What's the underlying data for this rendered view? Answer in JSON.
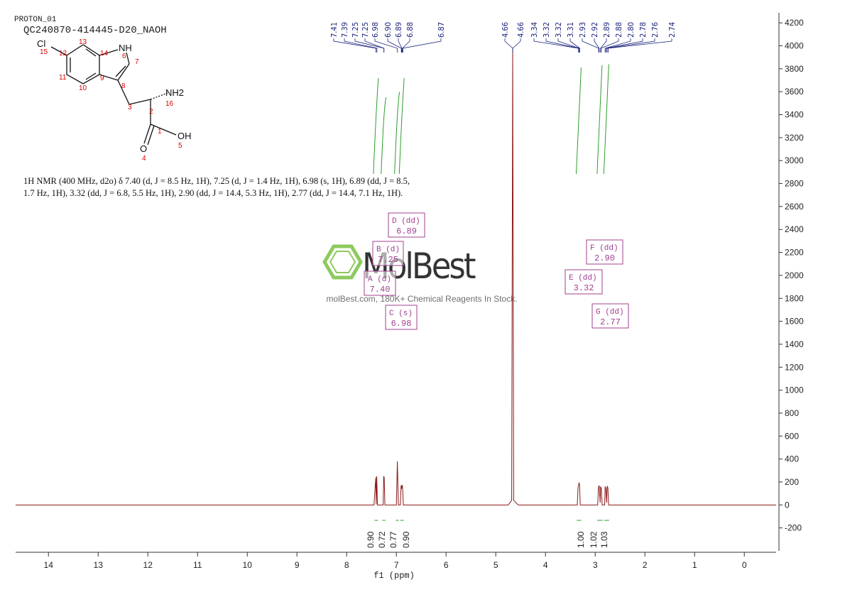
{
  "header": {
    "experiment": "PROTON_01",
    "sample": "QC240870-414445-D20_NAOH"
  },
  "structure": {
    "atoms": [
      "Cl",
      "NH",
      "NH2",
      "OH",
      "O"
    ],
    "numbers": [
      "15",
      "12",
      "13",
      "14",
      "6",
      "7",
      "11",
      "9",
      "8",
      "10",
      "3",
      "2",
      "16",
      "1",
      "5",
      "4"
    ]
  },
  "description": "1H NMR (400 MHz, d2o) δ 7.40 (d, J = 8.5 Hz, 1H), 7.25 (d, J = 1.4 Hz, 1H), 6.98 (s, 1H), 6.89 (dd, J = 8.5, 1.7 Hz, 1H), 3.32 (dd, J = 6.8, 5.5 Hz, 1H), 2.90 (dd, J = 14.4, 5.3 Hz, 1H), 2.77 (dd, J = 14.4, 7.1 Hz, 1H).",
  "watermark": {
    "brand": "MolBest",
    "tagline": "molBest.com, 180K+ Chemical Reagents In Stock."
  },
  "chart_data": {
    "type": "line",
    "xlabel": "f1 (ppm)",
    "color": "#8b1a1a",
    "xlim": [
      14.66,
      -0.64
    ],
    "xticks": [
      14,
      13,
      12,
      11,
      10,
      9,
      8,
      7,
      6,
      5,
      4,
      3,
      2,
      1,
      0
    ],
    "ylim": [
      -400,
      4300
    ],
    "yticks": [
      -200,
      0,
      200,
      400,
      600,
      800,
      1000,
      1200,
      1400,
      1600,
      1800,
      2000,
      2200,
      2400,
      2600,
      2800,
      3000,
      3200,
      3400,
      3600,
      3800,
      4000,
      4200
    ],
    "x": [
      14.66,
      7.45,
      7.415,
      7.405,
      7.395,
      7.38,
      7.265,
      7.255,
      7.245,
      7.23,
      7.0,
      6.98,
      6.96,
      6.92,
      6.905,
      6.895,
      6.885,
      6.875,
      6.86,
      4.75,
      4.68,
      4.66,
      4.64,
      4.55,
      3.36,
      3.345,
      3.325,
      3.315,
      3.3,
      2.95,
      2.935,
      2.92,
      2.9,
      2.89,
      2.875,
      2.86,
      2.81,
      2.8,
      2.785,
      2.77,
      2.76,
      2.745,
      2.73,
      -0.64
    ],
    "values": [
      0,
      0,
      240,
      5,
      250,
      0,
      0,
      250,
      240,
      0,
      0,
      380,
      0,
      0,
      170,
      140,
      175,
      150,
      0,
      0,
      40,
      3980,
      40,
      0,
      0,
      150,
      190,
      180,
      0,
      0,
      150,
      170,
      20,
      160,
      140,
      0,
      0,
      160,
      140,
      20,
      165,
      150,
      0,
      0
    ],
    "peak_picks": [
      {
        "value": 7.41,
        "label": "7.41"
      },
      {
        "value": 7.39,
        "label": "7.39"
      },
      {
        "value": 7.25,
        "label": "7.25"
      },
      {
        "value": 7.25,
        "label": "7.25"
      },
      {
        "value": 6.98,
        "label": "6.98"
      },
      {
        "value": 6.9,
        "label": "6.90"
      },
      {
        "value": 6.89,
        "label": "6.89"
      },
      {
        "value": 6.88,
        "label": "6.88"
      },
      {
        "value": 6.87,
        "label": "6.87"
      },
      {
        "value": 4.66,
        "label": "4.66"
      },
      {
        "value": 4.66,
        "label": "4.66"
      },
      {
        "value": 3.34,
        "label": "3.34"
      },
      {
        "value": 3.32,
        "label": "3.32"
      },
      {
        "value": 3.32,
        "label": "3.32"
      },
      {
        "value": 3.31,
        "label": "3.31"
      },
      {
        "value": 2.93,
        "label": "2.93"
      },
      {
        "value": 2.92,
        "label": "2.92"
      },
      {
        "value": 2.89,
        "label": "2.89"
      },
      {
        "value": 2.88,
        "label": "2.88"
      },
      {
        "value": 2.8,
        "label": "2.80"
      },
      {
        "value": 2.78,
        "label": "2.78"
      },
      {
        "value": 2.76,
        "label": "2.76"
      },
      {
        "value": 2.74,
        "label": "2.74"
      }
    ],
    "integrals": [
      {
        "from": 7.44,
        "to": 7.37,
        "value": 0.9,
        "label": "0.90"
      },
      {
        "from": 7.28,
        "to": 7.22,
        "value": 0.72,
        "label": "0.72"
      },
      {
        "from": 7.01,
        "to": 6.95,
        "value": 0.77,
        "label": "0.77"
      },
      {
        "from": 6.92,
        "to": 6.85,
        "value": 0.9,
        "label": "0.90"
      },
      {
        "from": 3.37,
        "to": 3.28,
        "value": 1.0,
        "label": "1.00"
      },
      {
        "from": 2.96,
        "to": 2.85,
        "value": 1.02,
        "label": "1.02"
      },
      {
        "from": 2.82,
        "to": 2.72,
        "value": 1.03,
        "label": "1.03"
      }
    ],
    "multiplets": [
      {
        "name": "A (d)",
        "shift": "7.40"
      },
      {
        "name": "B (d)",
        "shift": "7.25"
      },
      {
        "name": "C (s)",
        "shift": "6.98"
      },
      {
        "name": "D (dd)",
        "shift": "6.89"
      },
      {
        "name": "E (dd)",
        "shift": "3.32"
      },
      {
        "name": "F (dd)",
        "shift": "2.90"
      },
      {
        "name": "G (dd)",
        "shift": "2.77"
      }
    ]
  }
}
